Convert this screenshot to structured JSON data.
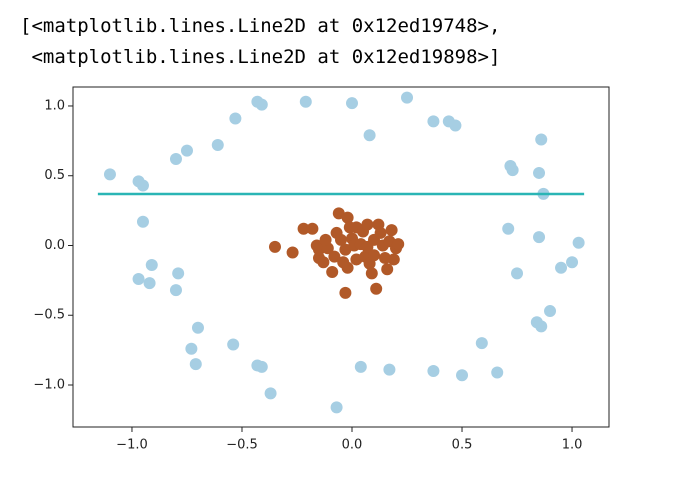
{
  "output_lines": [
    "[<matplotlib.lines.Line2D at 0x12ed19748>,",
    " <matplotlib.lines.Line2D at 0x12ed19898>]"
  ],
  "chart_data": {
    "type": "scatter",
    "xlim": [
      -1.268,
      1.168
    ],
    "ylim": [
      -1.301,
      1.136
    ],
    "xticks": [
      {
        "value": -1,
        "label": "−1.0"
      },
      {
        "value": -0.5,
        "label": "−0.5"
      },
      {
        "value": 0,
        "label": "0.0"
      },
      {
        "value": 0.5,
        "label": "0.5"
      },
      {
        "value": 1,
        "label": "1.0"
      }
    ],
    "yticks": [
      {
        "value": -1,
        "label": "−1.0"
      },
      {
        "value": -0.5,
        "label": "−0.5"
      },
      {
        "value": 0,
        "label": "0.0"
      },
      {
        "value": 0.5,
        "label": "0.5"
      },
      {
        "value": 1,
        "label": "1.0"
      }
    ],
    "series": [
      {
        "type": "scatter",
        "color": "#a6cee3",
        "x": [
          -1.1,
          -0.97,
          -0.95,
          -0.95,
          -0.91,
          -0.97,
          -0.92,
          -0.79,
          -0.8,
          -0.7,
          -0.73,
          -0.71,
          -0.54,
          -0.43,
          -0.41,
          -0.37,
          -0.07,
          0.04,
          0.17,
          0.37,
          0.5,
          0.66,
          0.59,
          0.71,
          0.75,
          0.84,
          0.86,
          0.9,
          0.95,
          1.0,
          1.03,
          0.85,
          0.87,
          0.85,
          0.86,
          0.72,
          0.73,
          -0.43,
          -0.41,
          -0.53,
          -0.61,
          -0.75,
          -0.8,
          -0.21,
          0.0,
          0.25,
          0.08,
          0.37,
          0.44,
          0.47
        ],
        "y": [
          0.51,
          0.46,
          0.43,
          0.17,
          -0.14,
          -0.24,
          -0.27,
          -0.2,
          -0.32,
          -0.59,
          -0.74,
          -0.85,
          -0.71,
          -0.86,
          -0.87,
          -1.06,
          -1.16,
          -0.87,
          -0.89,
          -0.9,
          -0.93,
          -0.91,
          -0.7,
          0.12,
          -0.2,
          -0.55,
          -0.58,
          -0.47,
          -0.16,
          -0.12,
          0.02,
          0.06,
          0.37,
          0.52,
          0.76,
          0.57,
          0.54,
          1.03,
          1.01,
          0.91,
          0.72,
          0.68,
          0.62,
          1.03,
          1.02,
          1.06,
          0.79,
          0.89,
          0.89,
          0.86
        ]
      },
      {
        "type": "scatter",
        "color": "#b15928",
        "x": [
          -0.35,
          -0.27,
          -0.22,
          -0.18,
          -0.16,
          -0.15,
          -0.15,
          -0.13,
          -0.11,
          -0.09,
          -0.08,
          -0.07,
          -0.06,
          -0.05,
          -0.04,
          -0.03,
          -0.03,
          -0.02,
          -0.01,
          0.0,
          0.01,
          0.02,
          0.02,
          0.04,
          0.05,
          0.06,
          0.07,
          0.07,
          0.08,
          0.09,
          0.1,
          0.1,
          0.11,
          0.12,
          0.13,
          0.14,
          0.15,
          0.16,
          0.17,
          0.18,
          0.19,
          0.2,
          0.21,
          -0.02,
          -0.12
        ],
        "y": [
          -0.01,
          -0.05,
          0.12,
          0.12,
          0.0,
          -0.09,
          -0.03,
          -0.12,
          -0.02,
          -0.19,
          -0.08,
          0.09,
          0.23,
          0.04,
          -0.12,
          -0.34,
          -0.03,
          0.2,
          0.13,
          0.05,
          0.0,
          -0.1,
          0.13,
          0.01,
          0.1,
          -0.08,
          0.15,
          -0.01,
          -0.13,
          -0.2,
          0.04,
          -0.07,
          -0.31,
          0.15,
          0.09,
          0.0,
          -0.09,
          -0.17,
          0.03,
          0.11,
          -0.1,
          -0.02,
          0.01,
          -0.16,
          0.04
        ]
      },
      {
        "type": "line",
        "color": "#2ab5b5",
        "x": [
          -1.155,
          1.055
        ],
        "y": [
          0.369,
          0.369
        ]
      }
    ]
  }
}
